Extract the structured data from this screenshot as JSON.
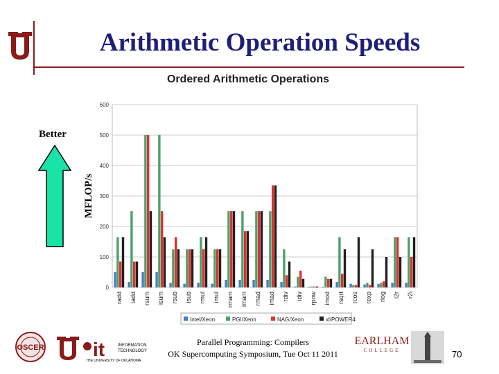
{
  "slide": {
    "title": "Arithmetic Operation Speeds",
    "better_label": "Better",
    "footer_line1": "Parallel Programming: Compilers",
    "footer_line2": "OK Supercomputing Symposium, Tue Oct 11 2011",
    "page_number": "70",
    "logos": {
      "oscer": "OSCER",
      "it_letters": "it",
      "it_line1": "INFORMATION",
      "it_line2": "TECHNOLOGY",
      "it_tagline": "THE UNIVERSITY OF OKLAHOMA",
      "earlham": "EARLHAM",
      "earlham_sub": "COLLEGE"
    },
    "colors": {
      "title": "#1f1f7a",
      "accent_rule": "#8b1a1a",
      "arrow": "#19e3a6"
    }
  },
  "chart_data": {
    "type": "bar",
    "title": "Ordered Arithmetic Operations",
    "ylabel": "MFLOP/s",
    "xlabel": "",
    "ylim": [
      0,
      600
    ],
    "yticks": [
      0,
      100,
      200,
      300,
      400,
      500,
      600
    ],
    "grid": true,
    "legend_position": "bottom",
    "categories": [
      "radd",
      "iadd",
      "rsum",
      "isum",
      "rsub",
      "isub",
      "rmul",
      "imul",
      "rmam",
      "imam",
      "rmad",
      "imad",
      "rdiv",
      "idiv",
      "rpow",
      "imod",
      "rsqrt",
      "rcos",
      "rexp",
      "rlog",
      "i2r",
      "r2i"
    ],
    "series": [
      {
        "name": "Intel/Xeon",
        "color": "#4a7bc4",
        "values": [
          50,
          18,
          50,
          50,
          15,
          12,
          15,
          12,
          25,
          25,
          25,
          25,
          18,
          3,
          2,
          2,
          18,
          12,
          10,
          12,
          15,
          15
        ]
      },
      {
        "name": "PGI/Xeon",
        "color": "#4ca06a",
        "values": [
          165,
          250,
          500,
          500,
          125,
          125,
          165,
          125,
          250,
          250,
          250,
          250,
          125,
          35,
          3,
          35,
          165,
          8,
          15,
          15,
          165,
          165
        ]
      },
      {
        "name": "NAG/Xeon",
        "color": "#e03030",
        "values": [
          85,
          85,
          500,
          250,
          165,
          125,
          125,
          125,
          250,
          185,
          250,
          335,
          40,
          55,
          3,
          28,
          45,
          8,
          8,
          20,
          165,
          100
        ]
      },
      {
        "name": "xl/POWER4",
        "color": "#202020",
        "values": [
          165,
          85,
          250,
          165,
          125,
          125,
          165,
          125,
          250,
          185,
          250,
          335,
          85,
          28,
          3,
          28,
          125,
          165,
          125,
          100,
          100,
          165
        ]
      }
    ]
  }
}
